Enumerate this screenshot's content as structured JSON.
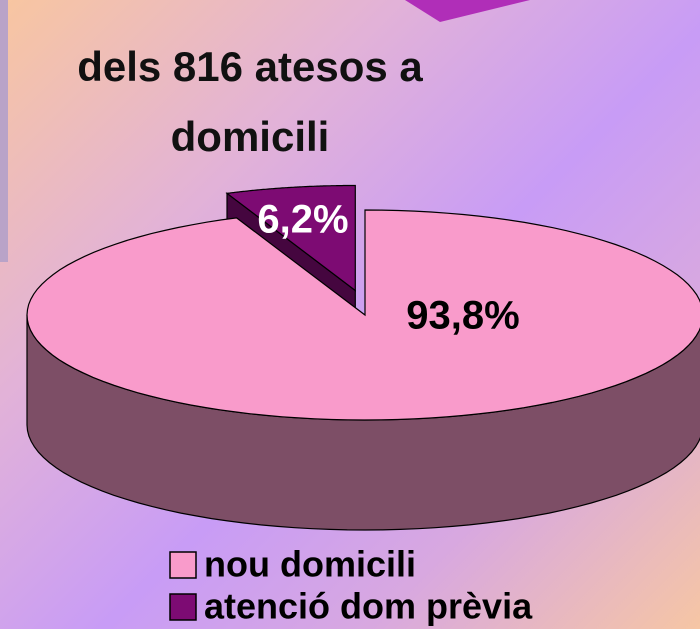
{
  "chart_data": {
    "type": "pie",
    "title": "dels 816 atesos a domicili",
    "categories": [
      "nou domicili",
      "atenció dom prèvia"
    ],
    "values": [
      93.8,
      6.2
    ],
    "value_labels": [
      "93,8%",
      "6,2%"
    ],
    "colors": [
      "#f99bcb",
      "#7d0b73"
    ],
    "legend": "bottom"
  }
}
